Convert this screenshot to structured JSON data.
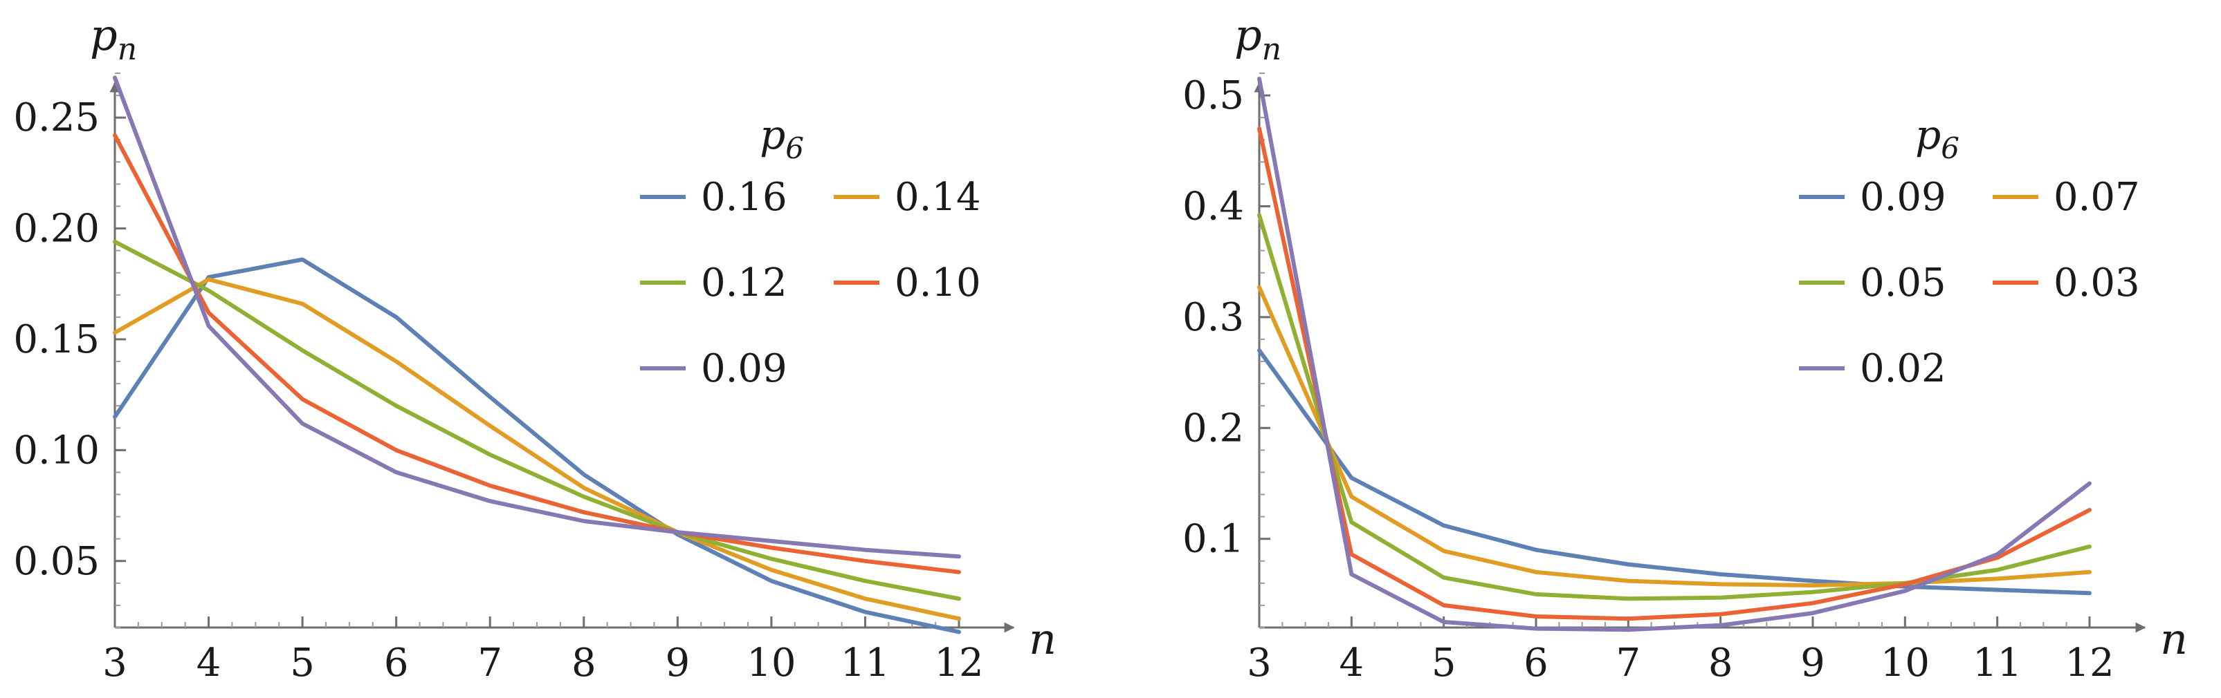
{
  "chart_data": [
    {
      "type": "line",
      "title": "",
      "xlabel": "n",
      "ylabel": "p_n",
      "ylabel_main": "p",
      "ylabel_sub": "n",
      "x": [
        3,
        4,
        5,
        6,
        7,
        8,
        9,
        10,
        11,
        12
      ],
      "xlim": [
        3,
        12
      ],
      "ylim": [
        0.02,
        0.27
      ],
      "xticks": [
        "3",
        "4",
        "5",
        "6",
        "7",
        "8",
        "9",
        "10",
        "11",
        "12"
      ],
      "yticks": [
        {
          "value": 0.05,
          "label": "0.05"
        },
        {
          "value": 0.1,
          "label": "0.10"
        },
        {
          "value": 0.15,
          "label": "0.15"
        },
        {
          "value": 0.2,
          "label": "0.20"
        },
        {
          "value": 0.25,
          "label": "0.25"
        }
      ],
      "legend": {
        "title": "p",
        "title_sub": "6",
        "placement": "top-right",
        "order": [
          0,
          2,
          4,
          1,
          3
        ]
      },
      "series": [
        {
          "name": "0.16",
          "color": "#5e81b5",
          "values": [
            0.115,
            0.178,
            0.186,
            0.16,
            0.124,
            0.089,
            0.062,
            0.041,
            0.027,
            0.018
          ]
        },
        {
          "name": "0.14",
          "color": "#e19c24",
          "values": [
            0.153,
            0.177,
            0.166,
            0.14,
            0.111,
            0.083,
            0.063,
            0.046,
            0.033,
            0.024
          ]
        },
        {
          "name": "0.12",
          "color": "#8fb032",
          "values": [
            0.194,
            0.172,
            0.145,
            0.12,
            0.098,
            0.079,
            0.063,
            0.051,
            0.041,
            0.033
          ]
        },
        {
          "name": "0.10",
          "color": "#eb6235",
          "values": [
            0.242,
            0.162,
            0.123,
            0.1,
            0.084,
            0.072,
            0.063,
            0.056,
            0.05,
            0.045
          ]
        },
        {
          "name": "0.09",
          "color": "#8778b3",
          "values": [
            0.268,
            0.156,
            0.112,
            0.09,
            0.077,
            0.068,
            0.063,
            0.059,
            0.055,
            0.052
          ]
        }
      ]
    },
    {
      "type": "line",
      "title": "",
      "xlabel": "n",
      "ylabel": "p_n",
      "ylabel_main": "p",
      "ylabel_sub": "n",
      "x": [
        3,
        4,
        5,
        6,
        7,
        8,
        9,
        10,
        11,
        12
      ],
      "xlim": [
        3,
        12
      ],
      "ylim": [
        0.02,
        0.52
      ],
      "xticks": [
        "3",
        "4",
        "5",
        "6",
        "7",
        "8",
        "9",
        "10",
        "11",
        "12"
      ],
      "yticks": [
        {
          "value": 0.1,
          "label": "0.1"
        },
        {
          "value": 0.2,
          "label": "0.2"
        },
        {
          "value": 0.3,
          "label": "0.3"
        },
        {
          "value": 0.4,
          "label": "0.4"
        },
        {
          "value": 0.5,
          "label": "0.5"
        }
      ],
      "legend": {
        "title": "p",
        "title_sub": "6",
        "placement": "top-right",
        "order": [
          0,
          2,
          4,
          1,
          3
        ]
      },
      "series": [
        {
          "name": "0.09",
          "color": "#5e81b5",
          "values": [
            0.27,
            0.155,
            0.112,
            0.09,
            0.077,
            0.068,
            0.062,
            0.057,
            0.054,
            0.051
          ]
        },
        {
          "name": "0.07",
          "color": "#e19c24",
          "values": [
            0.327,
            0.138,
            0.089,
            0.07,
            0.062,
            0.059,
            0.058,
            0.06,
            0.064,
            0.07
          ]
        },
        {
          "name": "0.05",
          "color": "#8fb032",
          "values": [
            0.392,
            0.115,
            0.065,
            0.05,
            0.046,
            0.047,
            0.052,
            0.06,
            0.072,
            0.093
          ]
        },
        {
          "name": "0.03",
          "color": "#eb6235",
          "values": [
            0.47,
            0.086,
            0.04,
            0.03,
            0.028,
            0.032,
            0.042,
            0.059,
            0.083,
            0.126
          ]
        },
        {
          "name": "0.02",
          "color": "#8778b3",
          "values": [
            0.515,
            0.068,
            0.025,
            0.019,
            0.018,
            0.022,
            0.033,
            0.053,
            0.086,
            0.15
          ]
        }
      ]
    }
  ]
}
